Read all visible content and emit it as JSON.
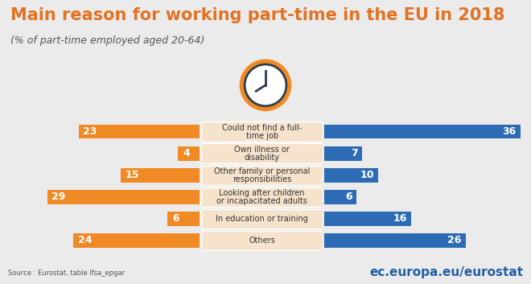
{
  "chart_data": {
    "type": "bar",
    "orientation": "horizontal",
    "title": "Main reason for working part-time in the EU in 2018",
    "subtitle": "(% of part-time employed aged 20-64)",
    "categories": [
      "Could not find a full-time job",
      "Own illness or disability",
      "Other family or personal responsibilities",
      "Looking after children or incapacitated adults",
      "In education or training",
      "Others"
    ],
    "series": [
      {
        "color": "#f08a24",
        "values": [
          23,
          4,
          15,
          29,
          6,
          24
        ]
      },
      {
        "color": "#2d6cb5",
        "values": [
          36,
          7,
          10,
          6,
          16,
          26
        ]
      }
    ],
    "xlim": [
      0,
      36
    ],
    "data_labels": true,
    "tick_labels": false,
    "source": "Source : Eurostat, table lfsa_epgar",
    "annotations": [
      "ec.europa.eu/eurostat"
    ]
  }
}
